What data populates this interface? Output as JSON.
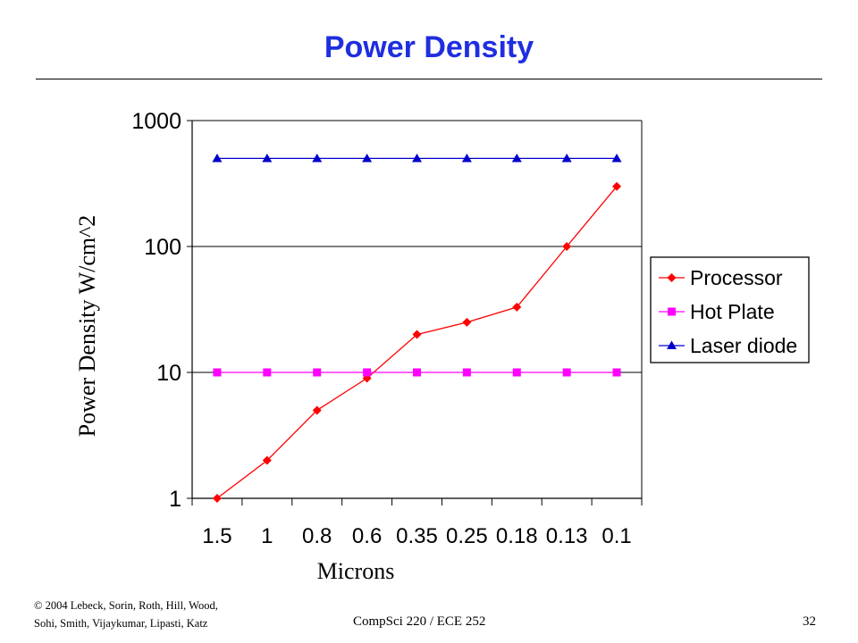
{
  "slide": {
    "title": "Power Density",
    "footer": {
      "copyright_line1": "© 2004 Lebeck, Sorin, Roth, Hill, Wood,",
      "copyright_line2": "Sohi, Smith, Vijaykumar, Lipasti, Katz",
      "course": "CompSci 220 / ECE 252",
      "page": "32"
    }
  },
  "chart_data": {
    "type": "line",
    "title": "",
    "xlabel": "Microns",
    "ylabel": "Power Density W/cm^2",
    "yscale": "log",
    "ylim": [
      1,
      1000
    ],
    "yticks": [
      "1",
      "10",
      "100",
      "1000"
    ],
    "categories": [
      "1.5",
      "1",
      "0.8",
      "0.6",
      "0.35",
      "0.25",
      "0.18",
      "0.13",
      "0.1"
    ],
    "grid": "horizontal",
    "legend_position": "right",
    "series": [
      {
        "name": "Processor",
        "color": "#ff0000",
        "marker": "diamond",
        "values": [
          1,
          2,
          5,
          9,
          20,
          25,
          33,
          100,
          300
        ]
      },
      {
        "name": "Hot Plate",
        "color": "#ff00ff",
        "marker": "square",
        "values": [
          10,
          10,
          10,
          10,
          10,
          10,
          10,
          10,
          10
        ]
      },
      {
        "name": "Laser diode",
        "color": "#0000cc",
        "marker": "triangle",
        "values": [
          500,
          500,
          500,
          500,
          500,
          500,
          500,
          500,
          500
        ]
      }
    ]
  }
}
